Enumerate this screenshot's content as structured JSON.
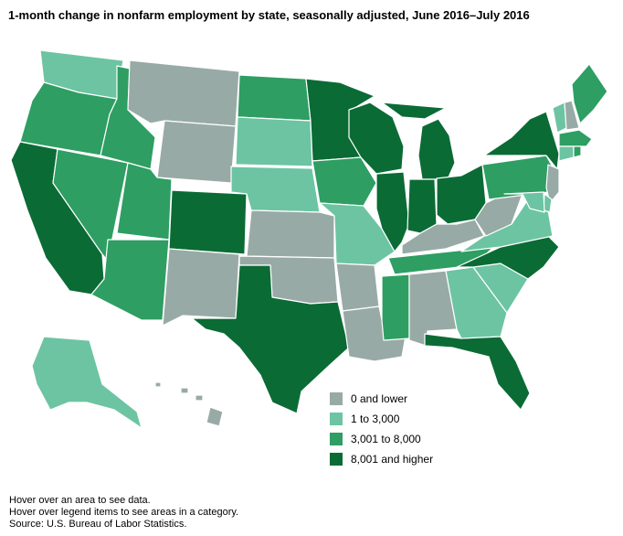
{
  "title": "1-month change in nonfarm employment by state, seasonally adjusted, June 2016–July 2016",
  "colors": {
    "0 and lower": "#98aaa6",
    "1 to 3,000": "#6cc4a2",
    "3,001 to 8,000": "#2e9e63",
    "8,001 and higher": "#0b6b35"
  },
  "legend": {
    "items": [
      {
        "label": "0 and lower",
        "color": "#98aaa6"
      },
      {
        "label": "1 to 3,000",
        "color": "#6cc4a2"
      },
      {
        "label": "3,001 to 8,000",
        "color": "#2e9e63"
      },
      {
        "label": "8,001 and higher",
        "color": "#0b6b35"
      }
    ]
  },
  "state_categories": {
    "Washington": "1 to 3,000",
    "Oregon": "3,001 to 8,000",
    "California": "8,001 and higher",
    "Nevada": "3,001 to 8,000",
    "Idaho": "3,001 to 8,000",
    "Montana": "0 and lower",
    "Wyoming": "0 and lower",
    "Utah": "3,001 to 8,000",
    "Arizona": "3,001 to 8,000",
    "Colorado": "8,001 and higher",
    "New Mexico": "0 and lower",
    "North Dakota": "3,001 to 8,000",
    "South Dakota": "1 to 3,000",
    "Nebraska": "1 to 3,000",
    "Kansas": "0 and lower",
    "Oklahoma": "0 and lower",
    "Texas": "8,001 and higher",
    "Minnesota": "8,001 and higher",
    "Iowa": "3,001 to 8,000",
    "Missouri": "1 to 3,000",
    "Arkansas": "0 and lower",
    "Louisiana": "0 and lower",
    "Wisconsin": "8,001 and higher",
    "Illinois": "8,001 and higher",
    "Michigan": "8,001 and higher",
    "Indiana": "8,001 and higher",
    "Ohio": "8,001 and higher",
    "Kentucky": "0 and lower",
    "Tennessee": "3,001 to 8,000",
    "Mississippi": "3,001 to 8,000",
    "Alabama": "0 and lower",
    "Georgia": "1 to 3,000",
    "Florida": "8,001 and higher",
    "South Carolina": "1 to 3,000",
    "North Carolina": "8,001 and higher",
    "Virginia": "1 to 3,000",
    "West Virginia": "0 and lower",
    "Pennsylvania": "3,001 to 8,000",
    "New York": "8,001 and higher",
    "New Jersey": "0 and lower",
    "Delaware": "1 to 3,000",
    "Maryland": "1 to 3,000",
    "Vermont": "1 to 3,000",
    "New Hampshire": "0 and lower",
    "Maine": "3,001 to 8,000",
    "Massachusetts": "3,001 to 8,000",
    "Connecticut": "1 to 3,000",
    "Rhode Island": "3,001 to 8,000",
    "Alaska": "1 to 3,000",
    "Hawaii": "0 and lower"
  },
  "notes": {
    "line1": "Hover over an area to see data.",
    "line2": "Hover over legend items to see areas in a category.",
    "line3": "Source: U.S. Bureau of Labor Statistics."
  }
}
